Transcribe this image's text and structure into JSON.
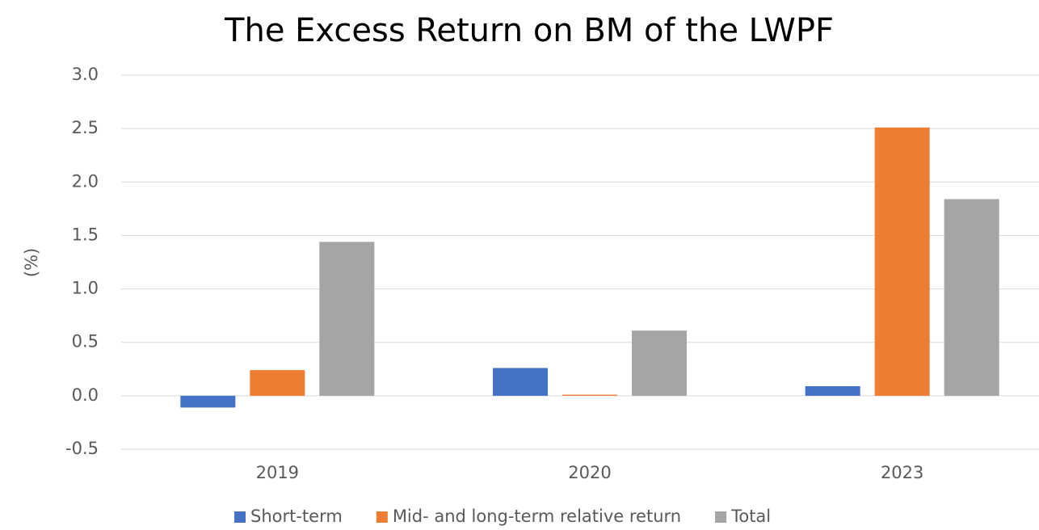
{
  "chart_data": {
    "type": "bar",
    "title": "The Excess Return on BM of the LWPF",
    "y_label": "(%)",
    "categories": [
      "2019",
      "2020",
      "2023"
    ],
    "series": [
      {
        "name": "Short-term",
        "color": "#4472c4",
        "values": [
          -0.11,
          0.26,
          0.09
        ]
      },
      {
        "name": "Mid- and long-term relative return",
        "color": "#ed7d31",
        "values": [
          0.24,
          0.01,
          2.51
        ]
      },
      {
        "name": "Total",
        "color": "#a5a5a5",
        "values": [
          1.44,
          0.61,
          1.84
        ]
      }
    ],
    "ylim": [
      -0.5,
      3.0
    ],
    "yticks": [
      -0.5,
      {
        "value": 0,
        "label": "0.0"
      },
      0.5,
      {
        "value": 1,
        "label": "1.0"
      },
      1.5,
      {
        "value": 2,
        "label": "2.0"
      },
      2.5,
      {
        "value": 3,
        "label": "3.0"
      }
    ],
    "grid": true,
    "legend": "bottom"
  }
}
